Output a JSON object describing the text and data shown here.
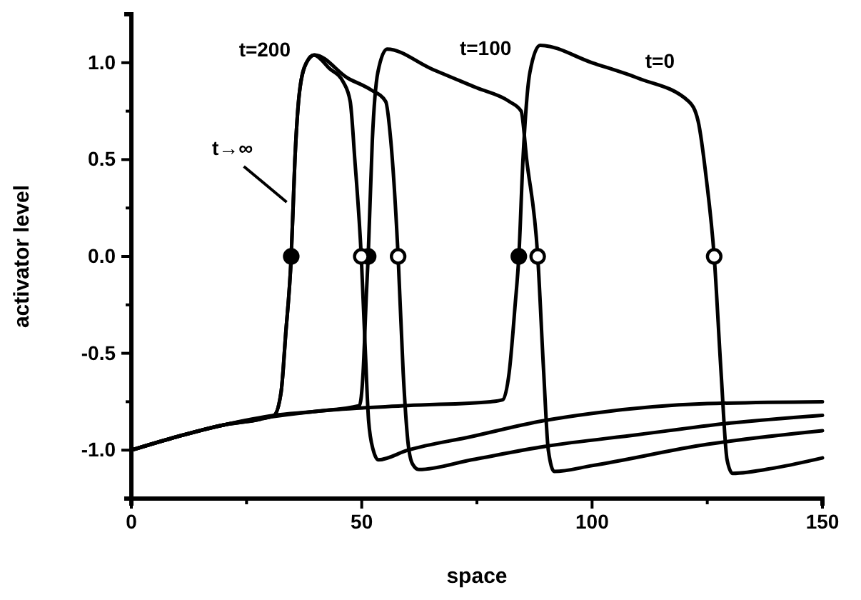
{
  "chart_data": {
    "type": "line",
    "xlabel": "space",
    "ylabel": "activator level",
    "xlim": [
      0,
      150
    ],
    "ylim": [
      -1.25,
      1.25
    ],
    "xticks": [
      0,
      {
        "value": 25,
        "label": null
      },
      50,
      {
        "value": 75,
        "label": null
      },
      100,
      {
        "value": 125,
        "label": null
      },
      150
    ],
    "yticks": [
      {
        "value": -1,
        "label": "-1.0"
      },
      {
        "value": -0.75,
        "label": null
      },
      {
        "value": -0.5,
        "label": "-0.5"
      },
      {
        "value": -0.25,
        "label": null
      },
      {
        "value": 0,
        "label": "0.0"
      },
      {
        "value": 0.25,
        "label": null
      },
      {
        "value": 0.5,
        "label": "0.5"
      },
      {
        "value": 0.75,
        "label": null
      },
      {
        "value": 1,
        "label": "1.0"
      }
    ],
    "grid": false,
    "marker": "none",
    "line_style": "solid",
    "series": [
      {
        "name": "t→∞",
        "color": "#000000",
        "x": [
          0,
          10,
          20,
          28,
          31,
          32.5,
          33.5,
          34.7,
          35.5,
          36.5,
          38,
          39.6,
          43,
          46,
          47.5,
          48.5,
          49.9,
          50.8,
          51.5,
          52.5,
          53.6,
          60,
          73.8,
          89,
          100,
          125,
          150
        ],
        "values": [
          -1,
          -0.93,
          -0.87,
          -0.84,
          -0.82,
          -0.7,
          -0.4,
          0,
          0.5,
          0.85,
          1,
          1.04,
          0.97,
          0.9,
          0.8,
          0.5,
          0,
          -0.5,
          -0.85,
          -1,
          -1.05,
          -1,
          -0.93,
          -0.85,
          -0.81,
          -0.76,
          -0.75
        ]
      },
      {
        "name": "t=200",
        "color": "#000000",
        "x": [
          0,
          10,
          20,
          28,
          31,
          32.5,
          33.5,
          34.7,
          35.5,
          36.5,
          38,
          39.8,
          47,
          52,
          55.2,
          56.3,
          57.9,
          59,
          60,
          61,
          62.4,
          73.8,
          90,
          110,
          130,
          150
        ],
        "values": [
          -1,
          -0.93,
          -0.87,
          -0.84,
          -0.82,
          -0.7,
          -0.4,
          0,
          0.5,
          0.85,
          1,
          1.04,
          0.92,
          0.86,
          0.8,
          0.6,
          0,
          -0.6,
          -0.95,
          -1.07,
          -1.1,
          -1.05,
          -0.98,
          -0.92,
          -0.86,
          -0.82
        ]
      },
      {
        "name": "t=100",
        "color": "#000000",
        "x": [
          0,
          10,
          20,
          31,
          40,
          49.5,
          50.3,
          51,
          51.4,
          52.3,
          53.5,
          55.5,
          65,
          75,
          82,
          84.6,
          85.8,
          88.2,
          89.5,
          90.5,
          91.8,
          100,
          125,
          150
        ],
        "values": [
          -1,
          -0.93,
          -0.87,
          -0.82,
          -0.8,
          -0.77,
          -0.6,
          -0.2,
          0,
          0.6,
          0.95,
          1.07,
          0.97,
          0.87,
          0.8,
          0.75,
          0.5,
          0,
          -0.6,
          -1,
          -1.11,
          -1.08,
          -0.97,
          -0.9
        ]
      },
      {
        "name": "t=0",
        "color": "#000000",
        "x": [
          0,
          20,
          40,
          60,
          78,
          80.6,
          82,
          83.3,
          84.1,
          85,
          86.5,
          88.7,
          100,
          110,
          121,
          123,
          124.8,
          126.5,
          128,
          129.3,
          130.5,
          140,
          150
        ],
        "values": [
          -1,
          -0.87,
          -0.8,
          -0.77,
          -0.75,
          -0.74,
          -0.6,
          -0.25,
          0,
          0.5,
          0.95,
          1.09,
          1,
          0.92,
          0.8,
          0.7,
          0.4,
          0,
          -0.6,
          -1.05,
          -1.12,
          -1.09,
          -1.04
        ]
      },
      {
        "type": "scatter",
        "marker": "circle",
        "color": "#000000",
        "x": [
          34.7,
          51.4,
          84.1
        ],
        "values": [
          0,
          0,
          0
        ]
      },
      {
        "type": "scatter",
        "marker": "circle",
        "color": "#ffffff",
        "x": [
          49.9,
          57.9,
          88.2,
          126.5
        ],
        "values": [
          0,
          0,
          0,
          0
        ]
      }
    ]
  }
}
